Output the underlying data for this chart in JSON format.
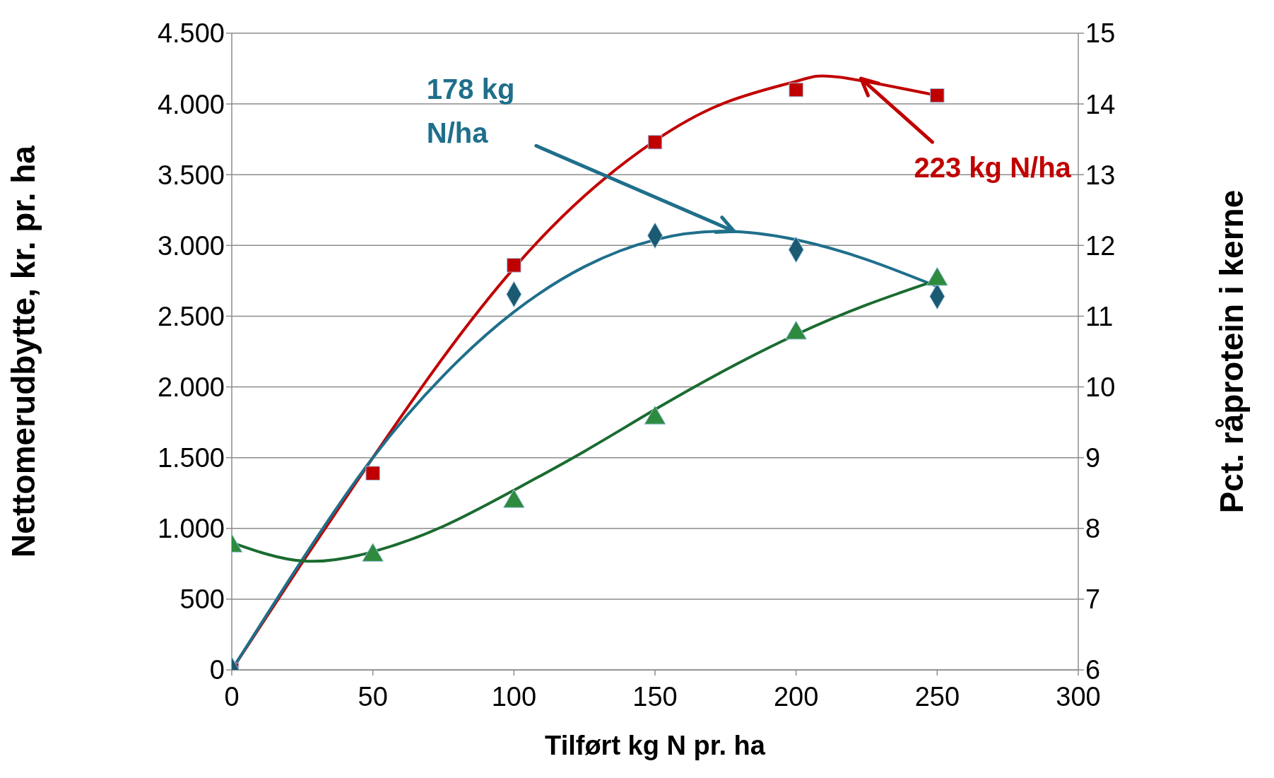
{
  "chart_data": {
    "type": "scatter",
    "xlabel": "Tilført kg N pr. ha",
    "ylabel": "Nettomerudbytte, kr. pr. ha",
    "y2label": "Pct. råprotein i kerne",
    "xlim": [
      0,
      300
    ],
    "xticks": [
      0,
      50,
      100,
      150,
      200,
      250,
      300
    ],
    "ylim": [
      0,
      4500
    ],
    "yticks": [
      0,
      {
        "value": 500,
        "label": "500"
      },
      {
        "value": 1000,
        "label": "1.000"
      },
      {
        "value": 1500,
        "label": "1.500"
      },
      {
        "value": 2000,
        "label": "2.000"
      },
      {
        "value": 2500,
        "label": "2.500"
      },
      {
        "value": 3000,
        "label": "3.000"
      },
      {
        "value": 3500,
        "label": "3.500"
      },
      {
        "value": 4000,
        "label": "4.000"
      },
      {
        "value": 4500,
        "label": "4.500"
      }
    ],
    "y2lim": [
      6,
      15
    ],
    "y2ticks": [
      6,
      7,
      8,
      9,
      10,
      11,
      12,
      13,
      14,
      15
    ],
    "grid": "y",
    "series": [
      {
        "marker": "square",
        "color": "#c00000",
        "x": [
          0,
          50,
          100,
          150,
          200,
          250
        ],
        "values": [
          0,
          1390,
          2860,
          3730,
          4100,
          4060
        ]
      },
      {
        "marker": "diamond",
        "color": "#1b5a70",
        "x": [
          0,
          100,
          150,
          200,
          250
        ],
        "values": [
          0,
          2655,
          3070,
          2970,
          2640
        ]
      },
      {
        "marker": "triangle",
        "color": "#2e8b3e",
        "axis": "y2",
        "x": [
          0,
          50,
          100,
          150,
          200,
          250
        ],
        "values": [
          7.75,
          7.62,
          8.38,
          9.56,
          10.76,
          11.52
        ]
      },
      {
        "type": "line",
        "marker": "none",
        "color": "#c00000",
        "x": [
          0,
          25,
          50,
          75,
          100,
          125,
          150,
          175,
          200,
          215,
          250
        ],
        "values": [
          0,
          760,
          1500,
          2210,
          2840,
          3350,
          3740,
          4010,
          4160,
          4190,
          4060
        ]
      },
      {
        "type": "line",
        "marker": "none",
        "color": "#1f6f8b",
        "x": [
          0,
          25,
          50,
          75,
          100,
          125,
          150,
          175,
          200,
          225,
          250
        ],
        "values": [
          0,
          780,
          1500,
          2080,
          2530,
          2850,
          3040,
          3100,
          3040,
          2900,
          2710
        ]
      },
      {
        "type": "line",
        "marker": "none",
        "color": "#1b6b30",
        "axis": "y2",
        "x": [
          0,
          25,
          50,
          75,
          100,
          125,
          150,
          175,
          200,
          225,
          250
        ],
        "values": [
          7.8,
          7.54,
          7.67,
          8.03,
          8.54,
          9.09,
          9.68,
          10.24,
          10.74,
          11.16,
          11.51
        ]
      }
    ],
    "annotations": [
      {
        "text": "178 kg N/ha",
        "x": 178,
        "y": 3100
      },
      {
        "text": "223 kg N/ha",
        "x": 223,
        "y": 4180
      }
    ]
  }
}
